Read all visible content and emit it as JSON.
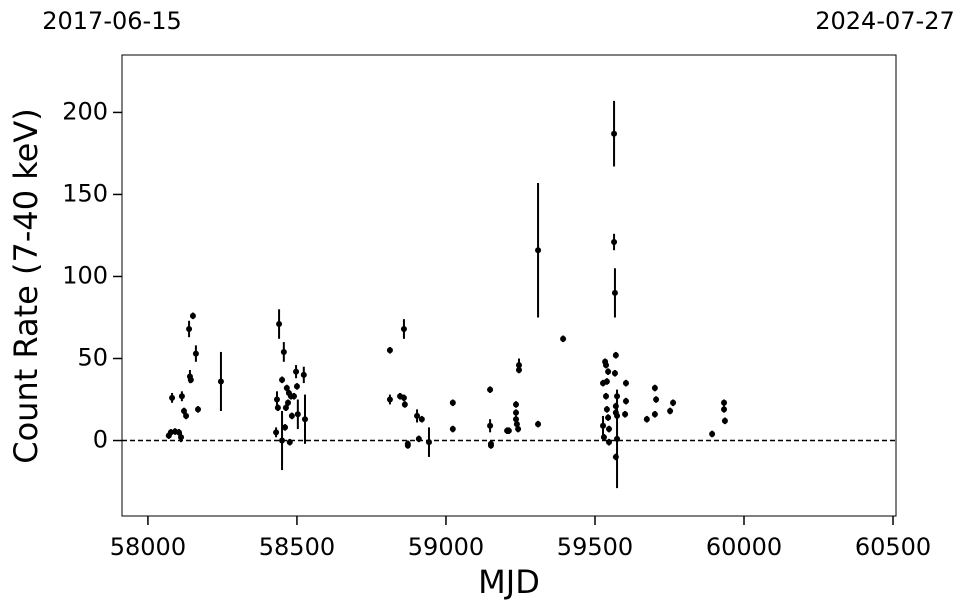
{
  "chart_data": {
    "type": "scatter",
    "date_labels": [
      "2017-06-15",
      "2024-07-27"
    ],
    "xlabel": "MJD",
    "ylabel": "Count Rate (7-40 keV)",
    "xlim": [
      57913,
      60510
    ],
    "ylim": [
      -46,
      235
    ],
    "xticks": [
      58000,
      58500,
      59000,
      59500,
      60000,
      60500
    ],
    "yticks": [
      0,
      50,
      100,
      150,
      200
    ],
    "hline": 0,
    "color": "#000000",
    "x": [
      58070,
      58077,
      58091,
      58081,
      58104,
      58111,
      58114,
      58121,
      58128,
      58138,
      58141,
      58144,
      58151,
      58161,
      58168,
      58245,
      58440,
      58430,
      58433,
      58436,
      58450,
      58450,
      58456,
      58460,
      58463,
      58466,
      58470,
      58473,
      58476,
      58480,
      58483,
      58490,
      58497,
      58500,
      58503,
      58523,
      58527,
      58812,
      58812,
      58846,
      58859,
      58859,
      58862,
      58872,
      58872,
      58903,
      58919,
      58909,
      58943,
      59023,
      59023,
      59148,
      59148,
      59151,
      59151,
      59205,
      59211,
      59235,
      59235,
      59235,
      59238,
      59242,
      59245,
      59245,
      59309,
      59309,
      59393,
      59527,
      59527,
      59530,
      59534,
      59537,
      59537,
      59540,
      59544,
      59540,
      59544,
      59547,
      59547,
      59564,
      59564,
      59567,
      59570,
      59567,
      59574,
      59570,
      59570,
      59574,
      59574,
      59570,
      59601,
      59604,
      59604,
      59674,
      59701,
      59705,
      59701,
      59752,
      59762,
      59893,
      59933,
      59933,
      59936
    ],
    "values": [
      3,
      5,
      5.5,
      26,
      5,
      2,
      27,
      18,
      15,
      68,
      39,
      37,
      76,
      53,
      19,
      36,
      71,
      5,
      25,
      20,
      0,
      37,
      54,
      8,
      20,
      32,
      23,
      29,
      -1,
      27,
      15,
      27,
      42,
      33,
      16,
      40,
      13,
      55,
      25,
      27,
      68,
      26,
      22,
      -2,
      -3,
      15,
      13,
      1,
      -1,
      23,
      7,
      31,
      9,
      -2,
      -3,
      6,
      6,
      22,
      17,
      13,
      10,
      7,
      46,
      43,
      116,
      10,
      62,
      35,
      9,
      2,
      48,
      46,
      27,
      36,
      42,
      19,
      14,
      7,
      -1,
      187,
      121,
      90,
      52,
      41,
      27,
      21,
      17,
      15,
      1,
      -10,
      16,
      35,
      24,
      13,
      32,
      25,
      16,
      18,
      23,
      4,
      23,
      19,
      12
    ],
    "errors": [
      2,
      2,
      2,
      3,
      2,
      3,
      3,
      2,
      2,
      5,
      4,
      2,
      2,
      5,
      2,
      18,
      9,
      3,
      5,
      2,
      18,
      2,
      6,
      2,
      2,
      2,
      2,
      2,
      2,
      2,
      2,
      2,
      4,
      2,
      9,
      5,
      15,
      2,
      3,
      2,
      6,
      2,
      2,
      2,
      2,
      4,
      2,
      2,
      9,
      2,
      2,
      2,
      4,
      2,
      2,
      2,
      2,
      2,
      2,
      2,
      2,
      2,
      4,
      2,
      41,
      2,
      2,
      2,
      6,
      2,
      2,
      2,
      2,
      2,
      2,
      2,
      2,
      2,
      2,
      20,
      5,
      15,
      2,
      2,
      2,
      2,
      2,
      2,
      30,
      2,
      2,
      2,
      2,
      2,
      2,
      2,
      2,
      2,
      2,
      2,
      2,
      2,
      2
    ]
  }
}
